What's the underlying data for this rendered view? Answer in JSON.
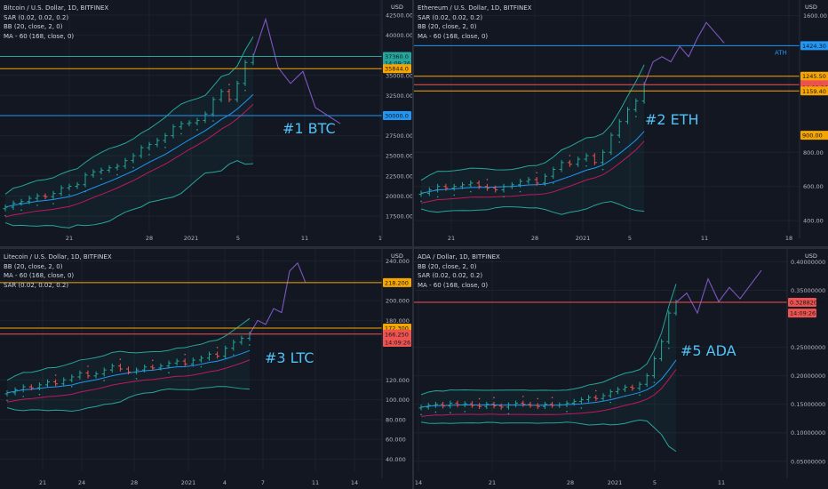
{
  "panels": [
    {
      "id": "btc",
      "legend": [
        "Bitcoin / U.S. Dollar, 1D, BITFINEX",
        "SAR (0.02, 0.02, 0.2)",
        "BB (20, close, 2, 0)",
        "MA - 60 (168, close, 0)"
      ],
      "currency": "USD",
      "annotation": "#1 BTC",
      "price_ticks": [
        "42500.00",
        "40000.00",
        "35000.00",
        "32500.00",
        "27500.00",
        "25000.00",
        "22500.00",
        "20000.00",
        "17500.00"
      ],
      "date_ticks": [
        "21",
        "28",
        "2021",
        "5",
        "11",
        "1"
      ],
      "price_tags": [
        {
          "text": "37360.0",
          "color": "#26a69a"
        },
        {
          "text": "14:09:26",
          "color": "#26a69a"
        },
        {
          "text": "35844.0",
          "color": "#f7a600"
        },
        {
          "text": "30000.0",
          "color": "#2196f3"
        }
      ]
    },
    {
      "id": "eth",
      "legend": [
        "Ethereum / U.S. Dollar, 1D, BITFINEX",
        "SAR (0.02, 0.02, 0.2)",
        "BB (20, close, 2, 0)",
        "MA - 60 (168, close, 0)"
      ],
      "currency": "USD",
      "annotation": "#2 ETH",
      "ath_label": "ATH",
      "price_ticks": [
        "1600.00",
        "800.00",
        "600.00",
        "400.00"
      ],
      "date_ticks": [
        "21",
        "28",
        "2021",
        "5",
        "11",
        "18"
      ],
      "price_tags": [
        {
          "text": "1424.30",
          "color": "#2196f3"
        },
        {
          "text": "1245.50",
          "color": "#f7a600"
        },
        {
          "text": "1195.70",
          "color": "#ef5350"
        },
        {
          "text": "14:09:26",
          "color": "#ef5350"
        },
        {
          "text": "1159.40",
          "color": "#f7a600"
        },
        {
          "text": "900.00",
          "color": "#f7a600"
        }
      ]
    },
    {
      "id": "ltc",
      "legend": [
        "Litecoin / U.S. Dollar, 1D, BITFINEX",
        "BB (20, close, 2, 0)",
        "MA - 60 (168, close, 0)",
        "SAR (0.02, 0.02, 0.2)"
      ],
      "currency": "USD",
      "annotation": "#3 LTC",
      "price_ticks": [
        "240.000",
        "220.000",
        "200.000",
        "180.000",
        "120.000",
        "100.000",
        "80.000",
        "60.000",
        "40.000"
      ],
      "date_ticks": [
        "21",
        "24",
        "28",
        "2021",
        "4",
        "7",
        "11",
        "14"
      ],
      "price_tags": [
        {
          "text": "218.200",
          "color": "#f7a600"
        },
        {
          "text": "172.300",
          "color": "#f7a600"
        },
        {
          "text": "166.250",
          "color": "#ef5350"
        },
        {
          "text": "14:09:26",
          "color": "#ef5350"
        }
      ]
    },
    {
      "id": "ada",
      "legend": [
        "ADA / Dollar, 1D, BITFINEX",
        "BB (20, close, 2, 0)",
        "SAR (0.02, 0.02, 0.2)",
        "MA - 60 (168, close, 0)"
      ],
      "currency": "USD",
      "annotation": "#5 ADA",
      "price_ticks": [
        "0.40000000",
        "0.35000000",
        "0.25000000",
        "0.20000000",
        "0.15000000",
        "0.10000000",
        "0.05000000"
      ],
      "date_ticks": [
        "14",
        "21",
        "28",
        "2021",
        "5",
        "11"
      ],
      "price_tags": [
        {
          "text": "0.32882000",
          "color": "#ef5350"
        },
        {
          "text": "14:09:26",
          "color": "#ef5350"
        }
      ]
    }
  ],
  "colors": {
    "background": "#131722",
    "grid": "#1e222d",
    "up": "#26a69a",
    "down": "#ef5350",
    "bb": "#26a69a",
    "ma": "#c2185b",
    "basis": "#2196f3",
    "projection": "#7e57c2",
    "level_orange": "#f7a600",
    "level_blue": "#2196f3",
    "annotation": "#4fc3f7"
  },
  "chart_data": [
    {
      "type": "candlestick",
      "title": "Bitcoin / U.S. Dollar, 1D, BITFINEX",
      "ylim": [
        16500,
        43500
      ],
      "x_labels": [
        "21",
        "28",
        "2021",
        "5",
        "11",
        "1"
      ],
      "levels": [
        37360,
        35844,
        30000
      ],
      "closes": [
        18600,
        19100,
        19300,
        19700,
        20000,
        19900,
        20300,
        21000,
        21200,
        21400,
        22600,
        23000,
        23200,
        23500,
        23700,
        24400,
        25000,
        26000,
        26400,
        26900,
        27500,
        28600,
        29000,
        29100,
        29400,
        30200,
        32000,
        33000,
        32000,
        34000,
        36600,
        37360
      ],
      "projection": [
        37360,
        42000,
        36000,
        34000,
        35500,
        31000,
        30000,
        29000
      ]
    },
    {
      "type": "candlestick",
      "title": "Ethereum / U.S. Dollar, 1D, BITFINEX",
      "ylim": [
        380,
        1650
      ],
      "x_labels": [
        "21",
        "28",
        "2021",
        "5",
        "11",
        "18"
      ],
      "levels": [
        1424.3,
        1245.5,
        1195.7,
        1159.4,
        900
      ],
      "closes": [
        560,
        580,
        600,
        590,
        600,
        610,
        620,
        600,
        590,
        580,
        600,
        610,
        630,
        640,
        620,
        660,
        700,
        740,
        730,
        760,
        780,
        740,
        800,
        900,
        980,
        1050,
        1100,
        1195.7
      ],
      "projection": [
        1195.7,
        1330,
        1360,
        1330,
        1420,
        1360,
        1470,
        1560,
        1500,
        1440
      ]
    },
    {
      "type": "candlestick",
      "title": "Litecoin / U.S. Dollar, 1D, BITFINEX",
      "ylim": [
        35,
        245
      ],
      "x_labels": [
        "21",
        "24",
        "28",
        "2021",
        "4",
        "7",
        "11",
        "14"
      ],
      "levels": [
        218.2,
        172.3,
        166.25
      ],
      "closes": [
        107,
        110,
        113,
        112,
        115,
        118,
        116,
        120,
        123,
        127,
        124,
        126,
        130,
        134,
        131,
        128,
        130,
        133,
        132,
        134,
        137,
        139,
        136,
        140,
        142,
        146,
        144,
        152,
        158,
        162,
        166.25
      ],
      "projection": [
        166.25,
        180,
        176,
        192,
        188,
        230,
        238,
        218
      ]
    },
    {
      "type": "candlestick",
      "title": "ADA / Dollar, 1D, BITFINEX",
      "ylim": [
        0.045,
        0.41
      ],
      "x_labels": [
        "14",
        "21",
        "28",
        "2021",
        "5",
        "11"
      ],
      "levels": [
        0.32882
      ],
      "closes": [
        0.145,
        0.148,
        0.15,
        0.147,
        0.152,
        0.149,
        0.151,
        0.148,
        0.146,
        0.15,
        0.147,
        0.145,
        0.149,
        0.152,
        0.15,
        0.148,
        0.146,
        0.15,
        0.148,
        0.149,
        0.152,
        0.155,
        0.158,
        0.162,
        0.16,
        0.165,
        0.172,
        0.176,
        0.18,
        0.178,
        0.185,
        0.2,
        0.23,
        0.26,
        0.31,
        0.32882
      ],
      "projection": [
        0.32882,
        0.345,
        0.31,
        0.37,
        0.33,
        0.355,
        0.335,
        0.36,
        0.385
      ]
    }
  ]
}
